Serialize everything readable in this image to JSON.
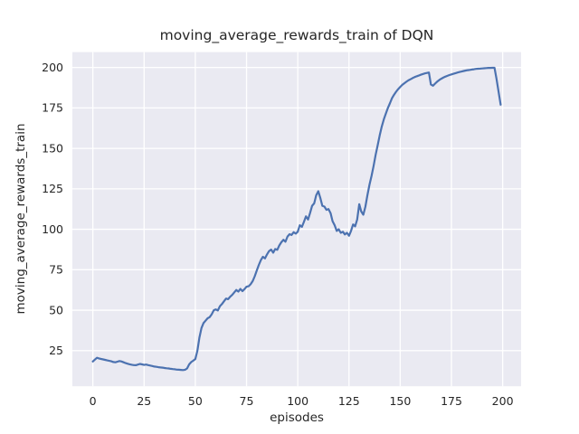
{
  "chart_data": {
    "type": "line",
    "title": "moving_average_rewards_train of DQN",
    "xlabel": "episodes",
    "ylabel": "moving_average_rewards_train",
    "x_ticks": [
      0,
      25,
      50,
      75,
      100,
      125,
      150,
      175,
      200
    ],
    "y_ticks": [
      25,
      50,
      75,
      100,
      125,
      150,
      175,
      200
    ],
    "xlim": [
      -10,
      209
    ],
    "ylim": [
      3,
      209.5
    ],
    "grid": true,
    "legend_position": "none",
    "style": {
      "figure_bg": "#ffffff",
      "plot_bg": "#eaeaf2",
      "grid_color": "#ffffff",
      "line_color": "#4c72b0",
      "text_color": "#262626"
    },
    "series": [
      {
        "name": "moving_average_rewards_train (DQN)",
        "x_start": 0,
        "x_step": 1,
        "values": [
          18.3,
          19.5,
          20.6,
          20.2,
          19.9,
          19.6,
          19.3,
          19.0,
          18.7,
          18.4,
          18.0,
          17.8,
          18.2,
          18.6,
          18.3,
          17.8,
          17.3,
          16.9,
          16.6,
          16.3,
          16.1,
          16.0,
          16.4,
          16.8,
          16.5,
          16.2,
          16.4,
          16.1,
          15.8,
          15.5,
          15.2,
          15.0,
          14.8,
          14.6,
          14.5,
          14.3,
          14.1,
          14.0,
          13.8,
          13.6,
          13.5,
          13.3,
          13.2,
          13.1,
          13.0,
          13.2,
          14.0,
          16.5,
          18.0,
          18.8,
          19.8,
          25.0,
          33.0,
          39.0,
          42.0,
          43.5,
          45.0,
          45.7,
          47.5,
          50.0,
          50.5,
          49.8,
          52.5,
          53.8,
          55.5,
          57.2,
          56.8,
          58.3,
          59.5,
          61.0,
          62.5,
          61.5,
          63.2,
          61.8,
          63.0,
          64.5,
          64.8,
          66.0,
          68.0,
          71.0,
          74.5,
          78.0,
          81.0,
          83.0,
          82.0,
          84.5,
          86.5,
          87.5,
          85.5,
          87.8,
          87.3,
          90.0,
          92.0,
          93.5,
          92.3,
          95.5,
          97.0,
          96.5,
          98.2,
          97.3,
          98.5,
          102.5,
          101.5,
          104.5,
          108.0,
          106.0,
          110.0,
          114.5,
          116.0,
          121.0,
          123.5,
          119.5,
          114.5,
          114.0,
          112.0,
          112.5,
          110.0,
          105.0,
          102.5,
          99.0,
          100.0,
          97.8,
          98.5,
          96.8,
          97.8,
          96.0,
          99.0,
          103.0,
          101.8,
          106.0,
          115.5,
          111.0,
          109.0,
          114.0,
          121.0,
          127.5,
          133.0,
          139.0,
          146.0,
          152.0,
          158.0,
          163.5,
          168.0,
          171.5,
          175.0,
          178.0,
          181.0,
          183.2,
          185.0,
          186.6,
          188.0,
          189.2,
          190.2,
          191.2,
          192.0,
          192.7,
          193.4,
          194.0,
          194.5,
          195.0,
          195.5,
          195.9,
          196.3,
          196.6,
          196.9,
          189.5,
          188.7,
          190.0,
          191.2,
          192.2,
          193.0,
          193.7,
          194.3,
          194.8,
          195.3,
          195.7,
          196.1,
          196.5,
          196.9,
          197.2,
          197.5,
          197.8,
          198.1,
          198.3,
          198.5,
          198.7,
          198.9,
          199.1,
          199.2,
          199.3,
          199.4,
          199.5,
          199.6,
          199.7,
          199.7,
          199.8,
          199.8,
          193.0,
          185.0,
          177.0
        ]
      }
    ]
  }
}
